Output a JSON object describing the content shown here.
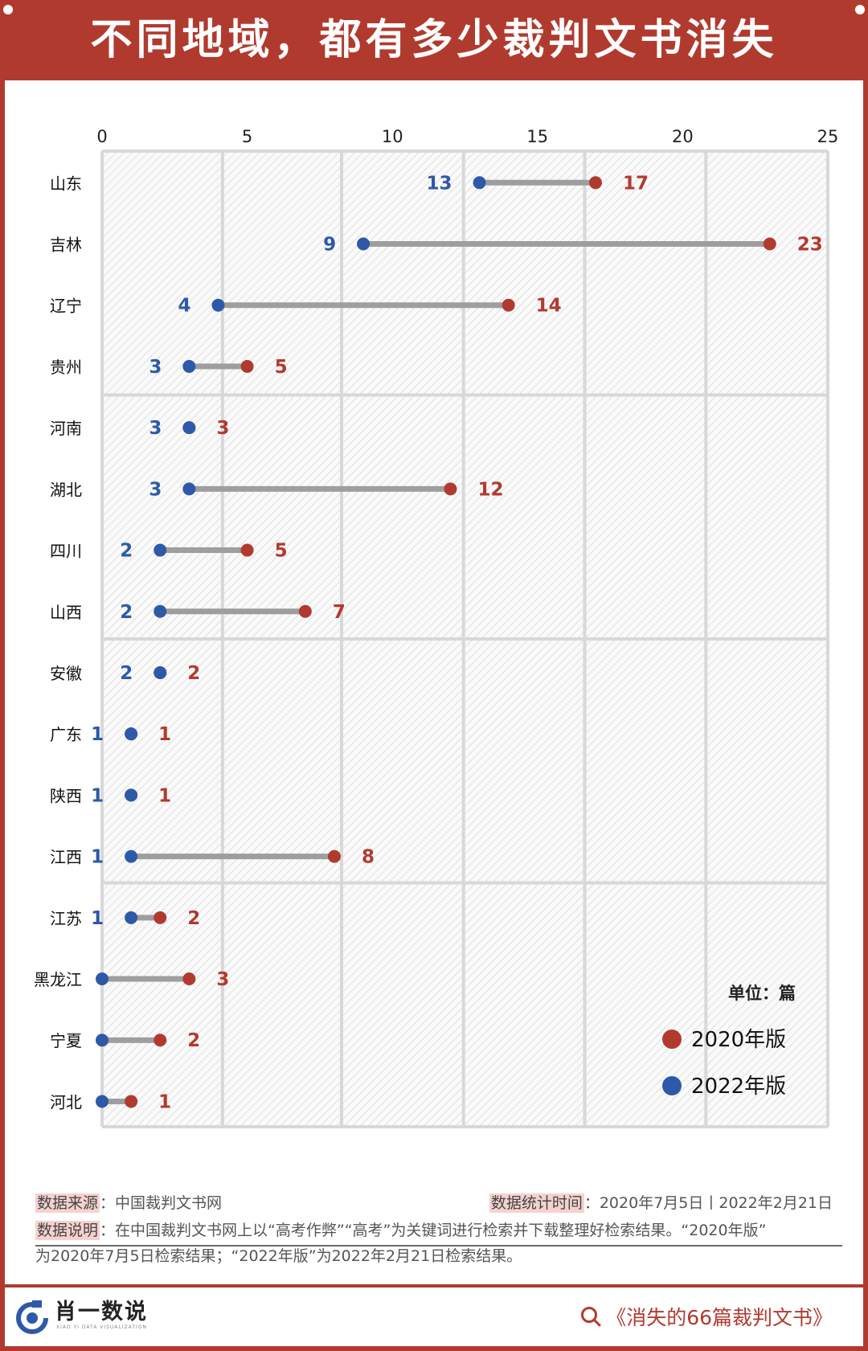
{
  "title": "不同地域，都有多少裁判文书消失",
  "colors": {
    "red": "#b13a2f",
    "blue": "#2e59a8",
    "line": "#9e9e9e",
    "grid": "#d8d8d8"
  },
  "chart_data": {
    "type": "dumbbell",
    "x_ticks": [
      "0",
      "5",
      "10",
      "15",
      "20",
      "25"
    ],
    "xlim": [
      0,
      25
    ],
    "categories": [
      "山东",
      "吉林",
      "辽宁",
      "贵州",
      "河南",
      "湖北",
      "四川",
      "山西",
      "安徽",
      "广东",
      "陕西",
      "江西",
      "江苏",
      "黑龙江",
      "宁夏",
      "河北"
    ],
    "series": [
      {
        "name": "2020年版",
        "values": [
          17,
          23,
          14,
          5,
          3,
          12,
          5,
          7,
          2,
          1,
          1,
          8,
          2,
          3,
          2,
          1
        ]
      },
      {
        "name": "2022年版",
        "values": [
          13,
          9,
          4,
          3,
          3,
          3,
          2,
          2,
          2,
          1,
          1,
          1,
          1,
          0,
          0,
          0
        ]
      }
    ],
    "unit_label": "单位：篇",
    "legend_position": "bottom-right",
    "grid": true
  },
  "meta": {
    "source_label": "数据来源",
    "source_value": "：中国裁判文书网",
    "time_label": "数据统计时间",
    "time_value": "：2020年7月5日丨2022年2月21日",
    "note_label": "数据说明",
    "note_line1": "：在中国裁判文书网上以“高考作弊”“高考”为关键词进行检索并下载整理好检索结果。“2020年版”",
    "note_line2": "为2020年7月5日检索结果；“2022年版”为2022年2月21日检索结果。"
  },
  "footer": {
    "brand": "肖一数说",
    "brand_sub": "XIAO YI DATA VISUALIZATION",
    "search_text": "《消失的66篇裁判文书》",
    "search_icon": "search-icon",
    "logo_icon": "brand-logo-icon"
  }
}
